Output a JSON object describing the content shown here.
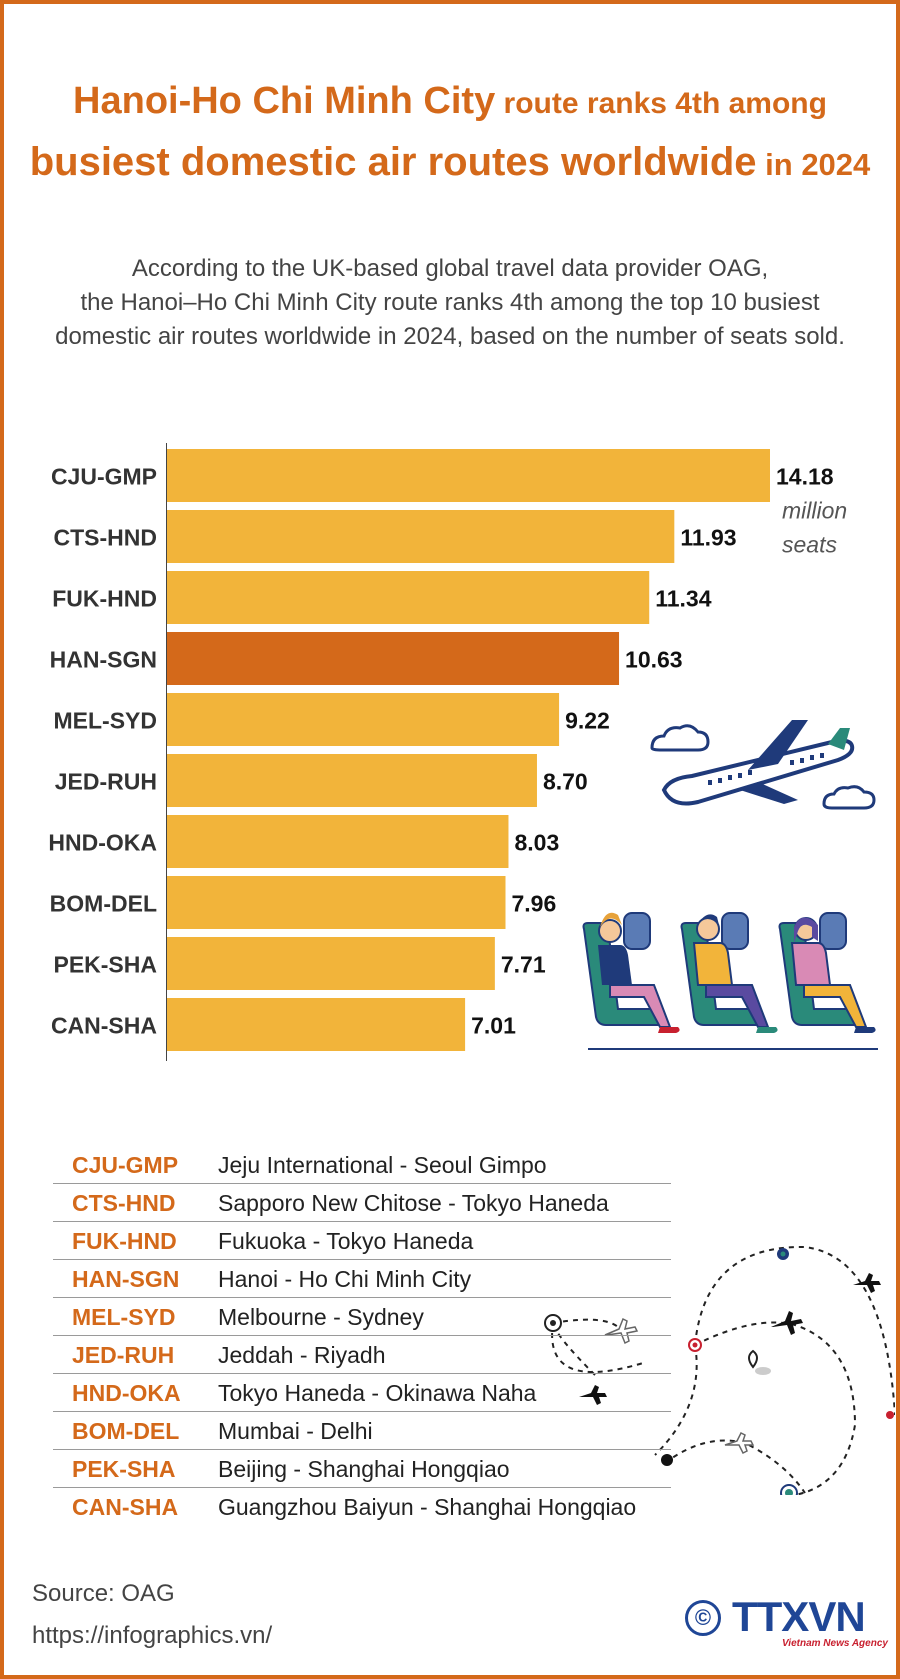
{
  "title": {
    "part1": "Hanoi-Ho Chi Minh City",
    "part2": " route ranks 4th among",
    "part3": "busiest domestic air routes worldwide",
    "part4": " in 2024"
  },
  "subtitle": {
    "line1": "According to the UK-based global travel data provider OAG,",
    "line2": "the Hanoi–Ho Chi Minh City route ranks 4th among the top 10 busiest",
    "line3": "domestic air routes worldwide in 2024, based on the number of seats sold."
  },
  "chart_data": {
    "type": "bar",
    "orientation": "horizontal",
    "categories": [
      "CJU-GMP",
      "CTS-HND",
      "FUK-HND",
      "HAN-SGN",
      "MEL-SYD",
      "JED-RUH",
      "HND-OKA",
      "BOM-DEL",
      "PEK-SHA",
      "CAN-SHA"
    ],
    "values": [
      14.18,
      11.93,
      11.34,
      10.63,
      9.22,
      8.7,
      8.03,
      7.96,
      7.71,
      7.01
    ],
    "value_labels": [
      "14.18",
      "11.93",
      "11.34",
      "10.63",
      "9.22",
      "8.70",
      "8.03",
      "7.96",
      "7.71",
      "7.01"
    ],
    "unit_label": [
      "million",
      "seats"
    ],
    "highlight": "HAN-SGN",
    "colors": {
      "bar": "#f2b43a",
      "highlight": "#d4691a"
    },
    "xlim": [
      0,
      14.18
    ]
  },
  "legend": [
    {
      "code": "CJU-GMP",
      "name": "Jeju International - Seoul Gimpo"
    },
    {
      "code": "CTS-HND",
      "name": "Sapporo New Chitose - Tokyo Haneda"
    },
    {
      "code": "FUK-HND",
      "name": "Fukuoka - Tokyo Haneda"
    },
    {
      "code": "HAN-SGN",
      "name": "Hanoi - Ho Chi Minh City"
    },
    {
      "code": "MEL-SYD",
      "name": "Melbourne - Sydney"
    },
    {
      "code": "JED-RUH",
      "name": "Jeddah - Riyadh"
    },
    {
      "code": "HND-OKA",
      "name": "Tokyo Haneda - Okinawa Naha"
    },
    {
      "code": "BOM-DEL",
      "name": "Mumbai - Delhi"
    },
    {
      "code": "PEK-SHA",
      "name": "Beijing - Shanghai Hongqiao"
    },
    {
      "code": "CAN-SHA",
      "name": "Guangzhou Baiyun - Shanghai Hongqiao"
    }
  ],
  "footer": {
    "source": "Source: OAG",
    "url": "https://infographics.vn/",
    "copyright": "©",
    "brand": "TTXVN",
    "brand_sub": "Vietnam News Agency"
  },
  "illustrations": [
    "airplane-icon",
    "cloud-icon",
    "passengers-seated",
    "flight-routes-map"
  ]
}
